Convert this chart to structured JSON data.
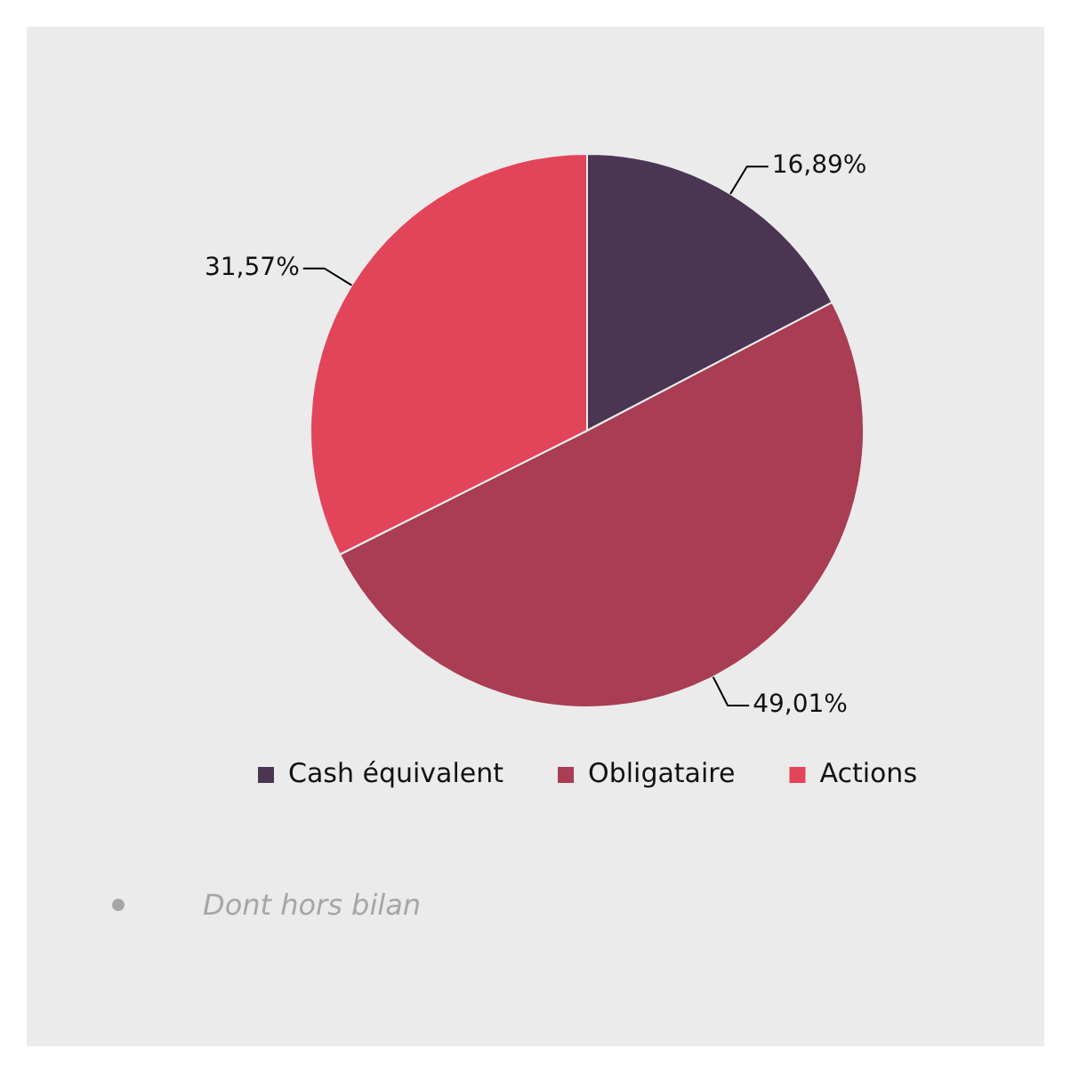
{
  "chart_data": {
    "type": "pie",
    "categories": [
      "Cash équivalent",
      "Obligataire",
      "Actions"
    ],
    "values": [
      16.89,
      49.01,
      31.57
    ],
    "value_labels": [
      "16,89%",
      "49,01%",
      "31,57%"
    ],
    "colors": [
      "#4a3652",
      "#a83d54",
      "#e2445a"
    ],
    "legend": "bottom",
    "annotations": [
      "Dont hors bilan"
    ]
  }
}
